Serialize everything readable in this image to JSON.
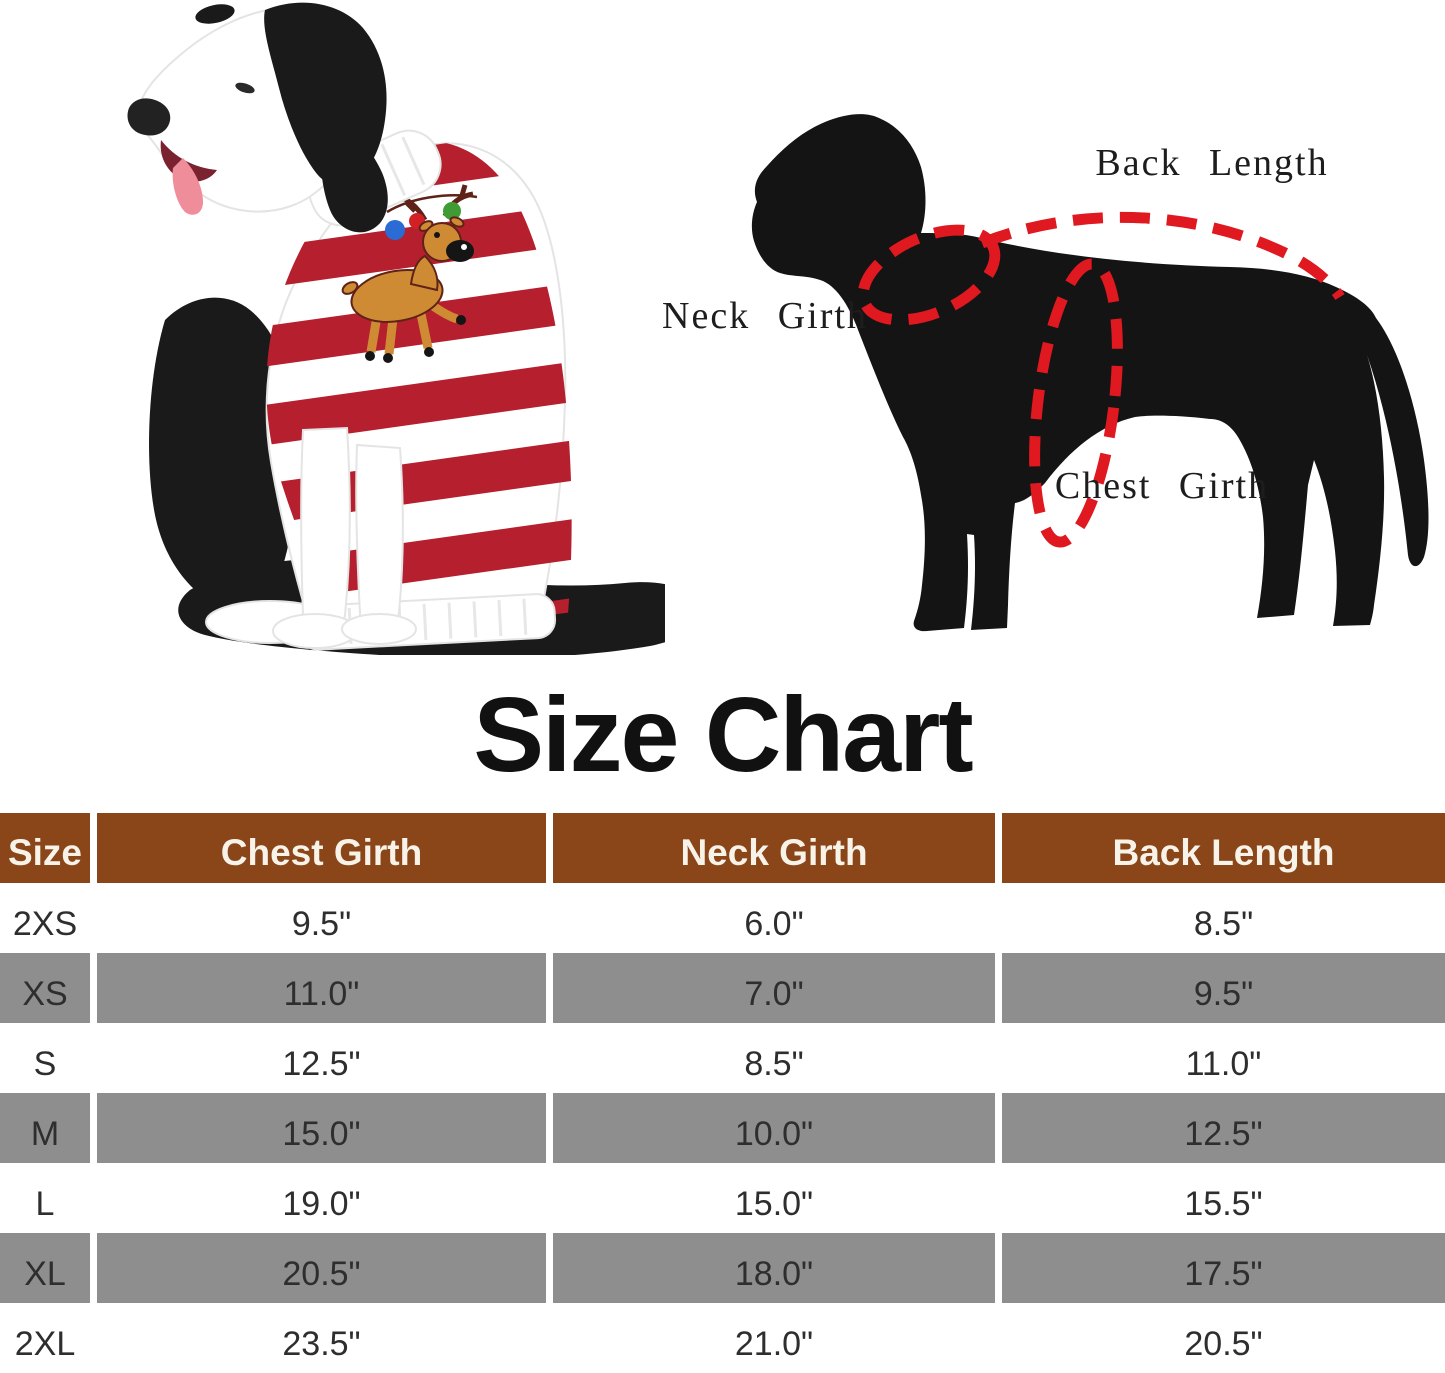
{
  "title": "Size Chart",
  "diagram": {
    "labels": {
      "back": "Back Length",
      "neck": "Neck Girth",
      "chest": "Chest Girth"
    }
  },
  "size_table": {
    "columns": [
      "Size",
      "Chest Girth",
      "Neck Girth",
      "Back Length"
    ],
    "rows": [
      [
        "2XS",
        "9.5\"",
        "6.0\"",
        "8.5\""
      ],
      [
        "XS",
        "11.0\"",
        "7.0\"",
        "9.5\""
      ],
      [
        "S",
        "12.5\"",
        "8.5\"",
        "11.0\""
      ],
      [
        "M",
        "15.0\"",
        "10.0\"",
        "12.5\""
      ],
      [
        "L",
        "19.0\"",
        "15.0\"",
        "15.5\""
      ],
      [
        "XL",
        "20.5\"",
        "18.0\"",
        "17.5\""
      ],
      [
        "2XL",
        "23.5\"",
        "21.0\"",
        "20.5\""
      ]
    ]
  },
  "colors": {
    "header_bg": "#8a4519",
    "header_text": "#f8f3e9",
    "row_alt_bg": "#8e8e8e",
    "cell_text": "#2e2e2e",
    "title_text": "#111111",
    "silhouette": "#141414",
    "dash_red": "#e0181f",
    "label_text": "#1d1d1d",
    "sweater_red": "#b51f2e",
    "dog_black": "#1a1a1a",
    "tongue_pink": "#ef8d9a",
    "deer_tan": "#cf8b33",
    "deer_dark": "#5f2218",
    "bulb_blue": "#2b6bd4",
    "bulb_red": "#d12127",
    "bulb_green": "#3f9c35"
  }
}
